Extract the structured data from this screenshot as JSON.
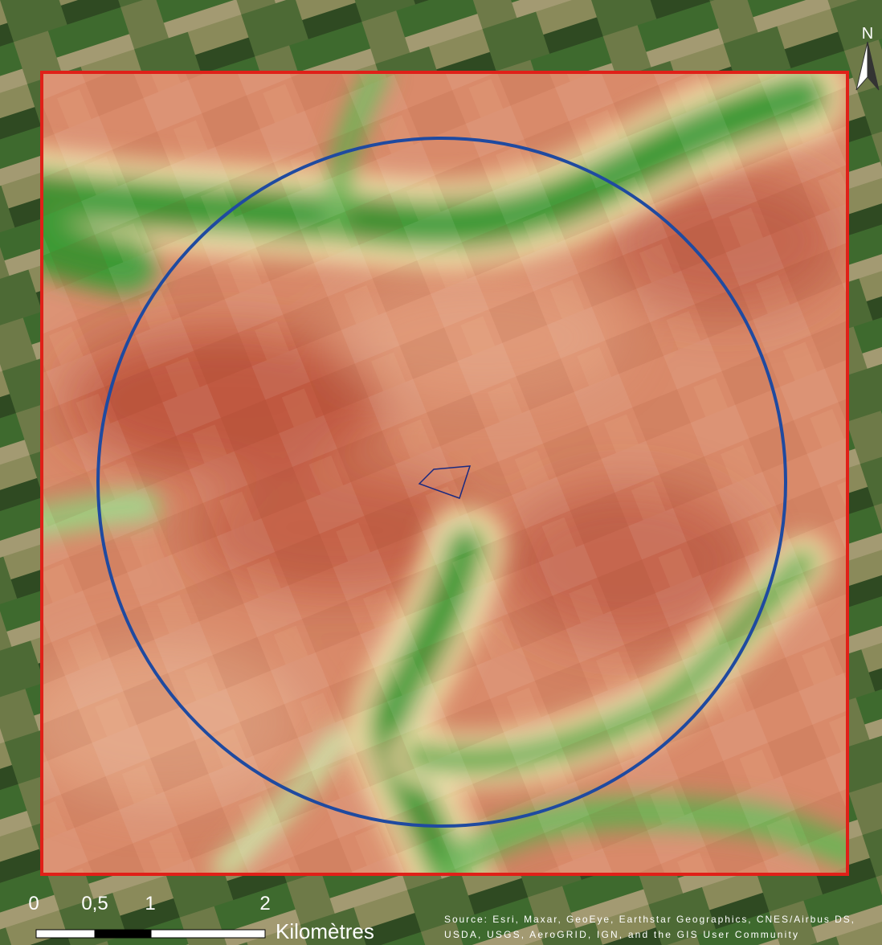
{
  "map": {
    "north_label": "N",
    "scale_bar": {
      "labels": [
        "0",
        "0,5",
        "1",
        "2"
      ],
      "unit": "Kilomètres"
    },
    "attribution": [
      "Source: Esri, Maxar, GeoEye, Earthstar Geographics, CNES/Airbus DS,",
      "USDA, USGS, AeroGRID, IGN, and the GIS User Community"
    ]
  }
}
